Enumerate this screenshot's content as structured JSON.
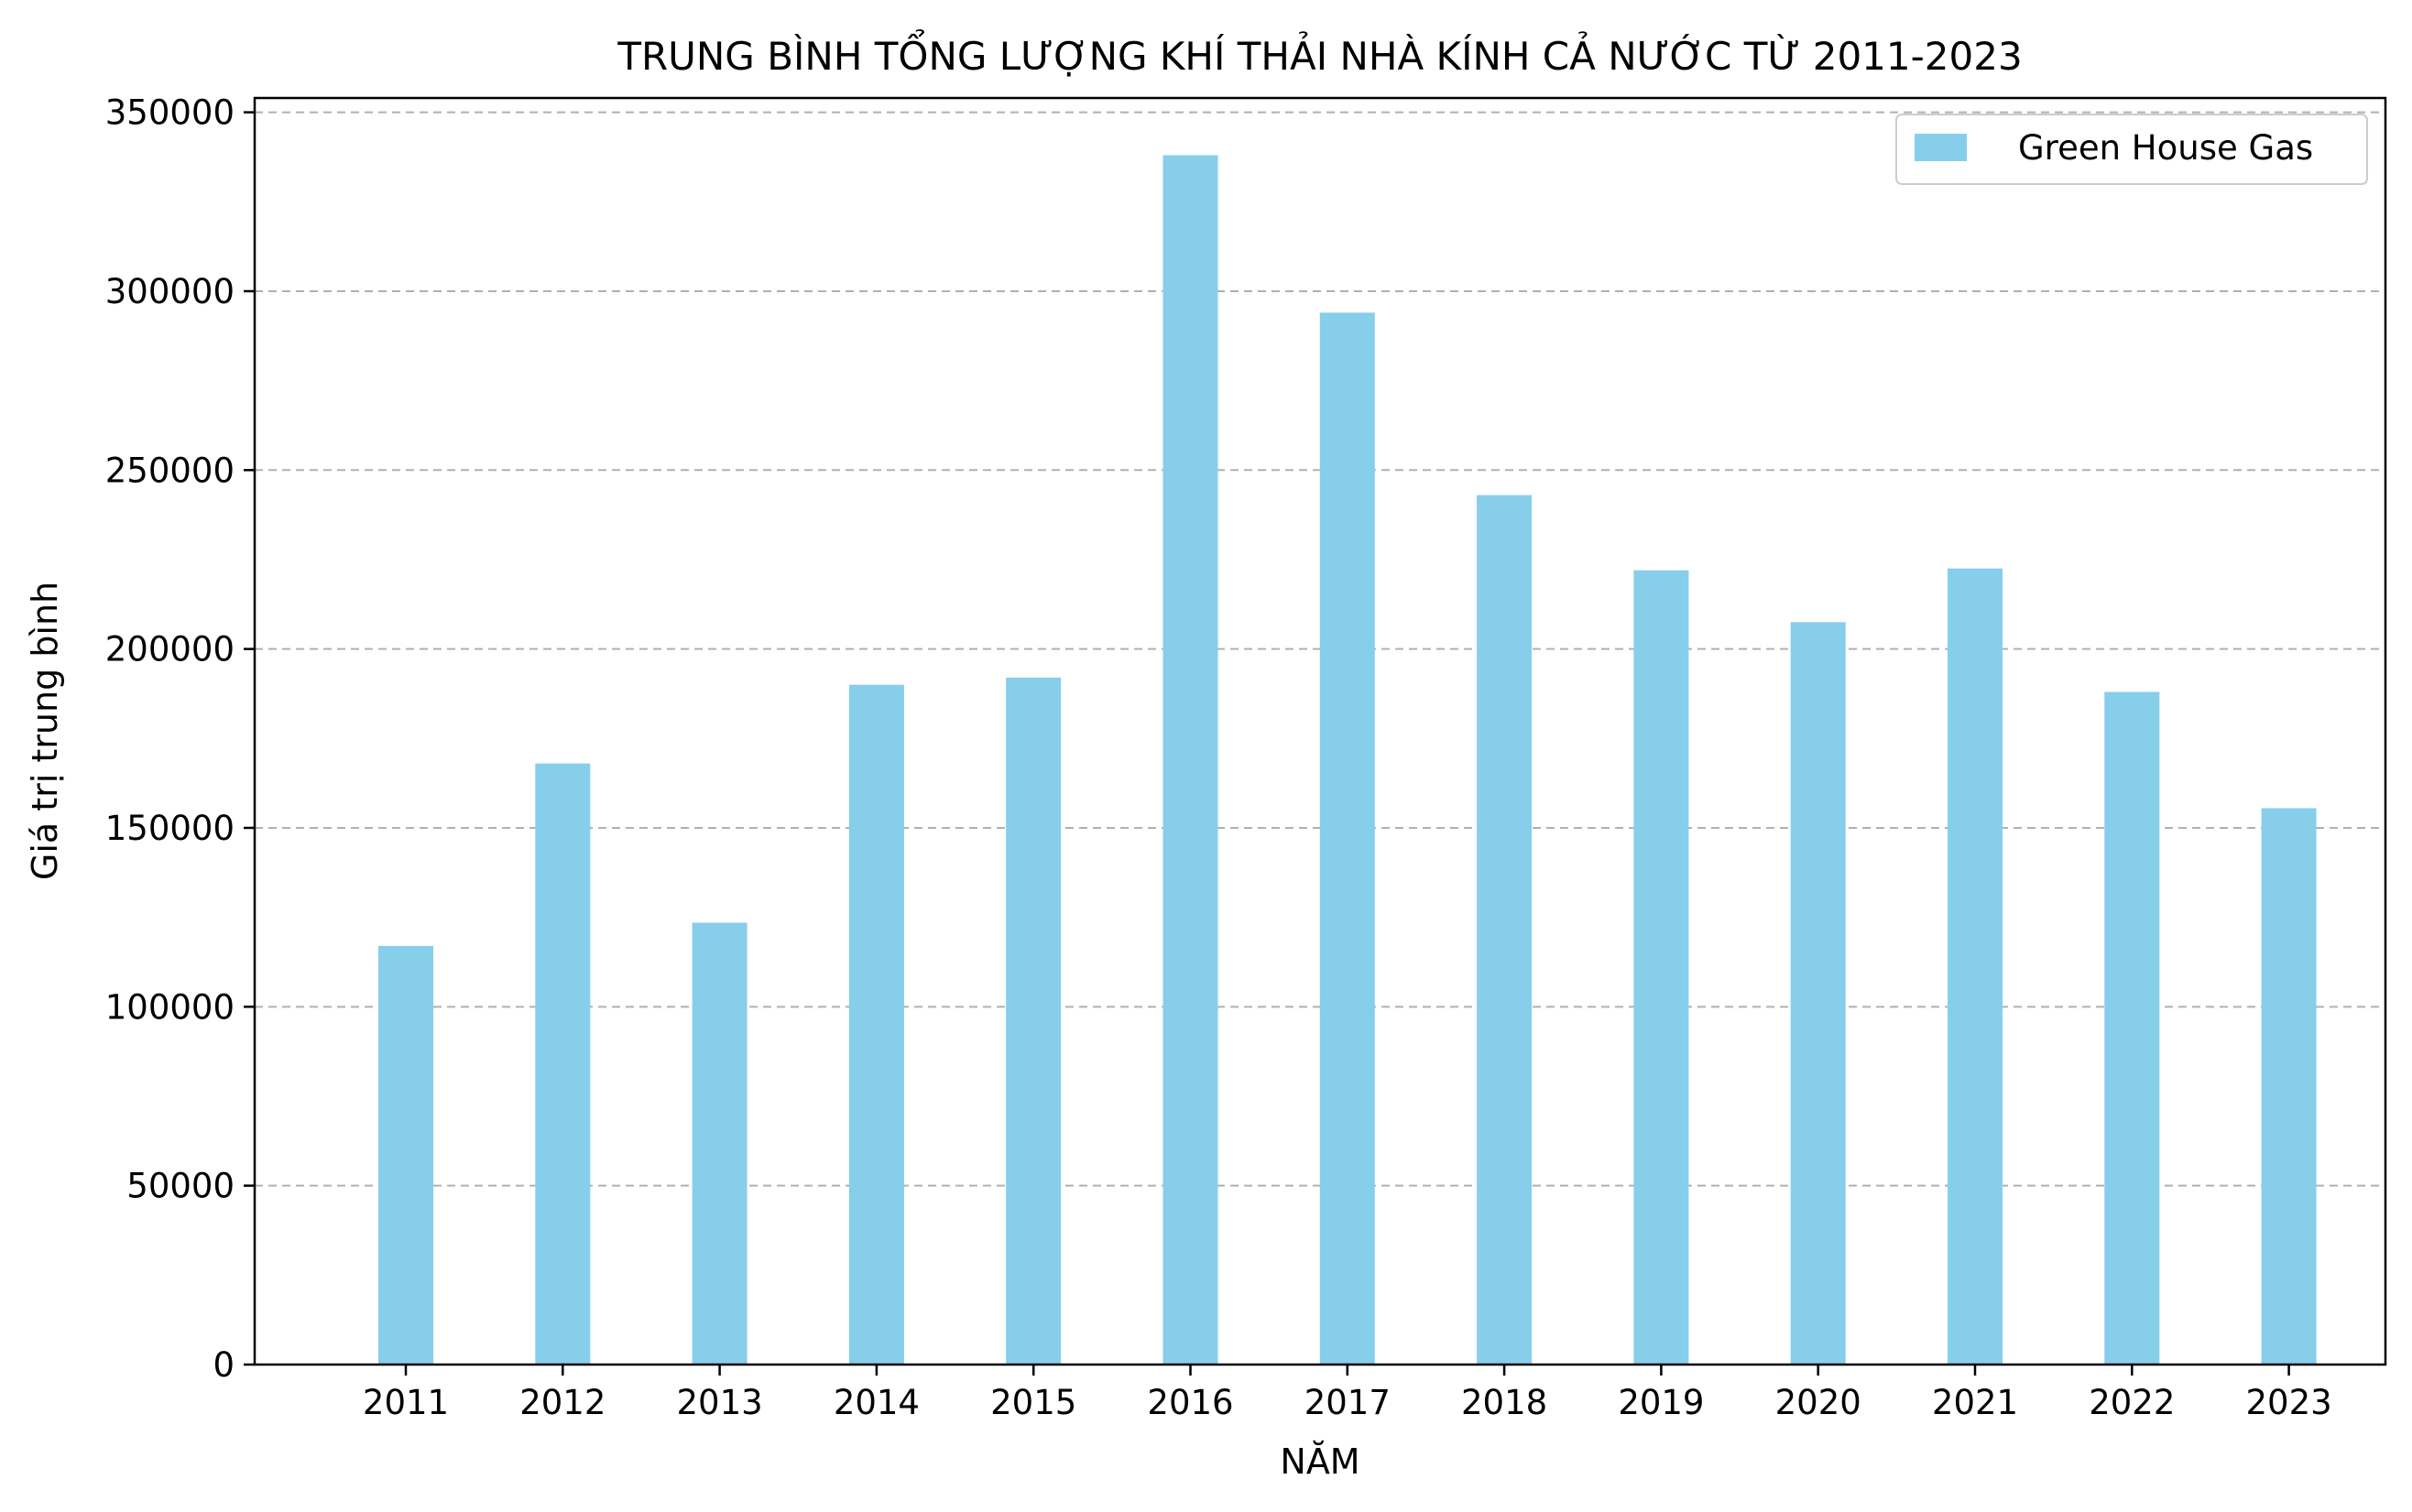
{
  "colors": {
    "bar": "#87ceeb",
    "axis": "#000000",
    "grid": "#b0b0b0",
    "background": "#ffffff",
    "legend_border": "#cccccc"
  },
  "chart_data": {
    "type": "bar",
    "title": "TRUNG BÌNH TỔNG LƯỢNG KHÍ THẢI NHÀ KÍNH CẢ NƯỚC TỪ 2011-2023",
    "xlabel": "NĂM",
    "ylabel": "Giá trị trung bình",
    "categories": [
      "2011",
      "2012",
      "2013",
      "2014",
      "2015",
      "2016",
      "2017",
      "2018",
      "2019",
      "2020",
      "2021",
      "2022",
      "2023"
    ],
    "series": [
      {
        "name": "Green House Gas",
        "values": [
          117000,
          168000,
          123500,
          190000,
          192000,
          338000,
          294000,
          243000,
          222000,
          207500,
          222500,
          188000,
          155500
        ]
      }
    ],
    "ylim": [
      0,
      354000
    ],
    "yticks": [
      0,
      50000,
      100000,
      150000,
      200000,
      250000,
      300000,
      350000
    ],
    "ytick_labels": [
      "0",
      "50000",
      "100000",
      "150000",
      "200000",
      "250000",
      "300000",
      "350000"
    ],
    "grid": "y-dashed",
    "legend_position": "top-right"
  }
}
